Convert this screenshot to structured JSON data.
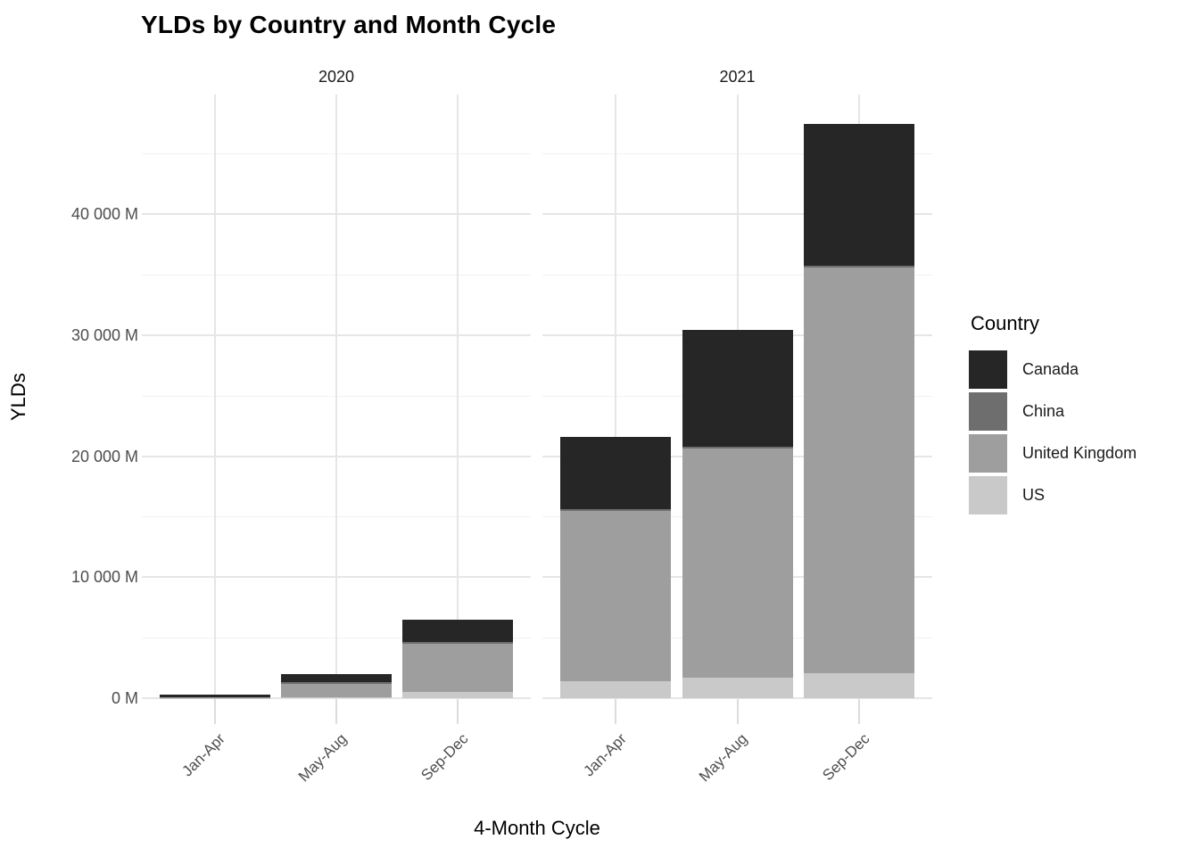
{
  "chart_data": {
    "type": "bar",
    "stacked": true,
    "title": "YLDs by Country and Month Cycle",
    "xlabel": "4-Month Cycle",
    "ylabel": "YLDs",
    "unit": "M",
    "ylim": [
      0,
      49900
    ],
    "grid": "major-and-minor",
    "categories": [
      "Jan-Apr",
      "May-Aug",
      "Sep-Dec"
    ],
    "facets": [
      {
        "label": "2020",
        "categories": [
          "Jan-Apr",
          "May-Aug",
          "Sep-Dec"
        ],
        "series": [
          {
            "name": "Canada",
            "values": [
              150,
              720,
              1850
            ]
          },
          {
            "name": "China",
            "values": [
              10,
              140,
              150
            ]
          },
          {
            "name": "United Kingdom",
            "values": [
              70,
              1080,
              3980
            ]
          },
          {
            "name": "US",
            "values": [
              30,
              70,
              515
            ]
          }
        ]
      },
      {
        "label": "2021",
        "categories": [
          "Jan-Apr",
          "May-Aug",
          "Sep-Dec"
        ],
        "series": [
          {
            "name": "Canada",
            "values": [
              5990,
              9630,
              11740
            ]
          },
          {
            "name": "China",
            "values": [
              150,
              150,
              150
            ]
          },
          {
            "name": "United Kingdom",
            "values": [
              14075,
              18930,
              33510
            ]
          },
          {
            "name": "US",
            "values": [
              1400,
              1700,
              2060
            ]
          }
        ]
      }
    ],
    "yticks": [
      {
        "value": 0,
        "label": "0 M"
      },
      {
        "value": 10000,
        "label": "10 000 M"
      },
      {
        "value": 20000,
        "label": "20 000 M"
      },
      {
        "value": 30000,
        "label": "30 000 M"
      },
      {
        "value": 40000,
        "label": "40 000 M"
      }
    ],
    "minor_yticks": [
      5000,
      15000,
      25000,
      35000,
      45000
    ],
    "stack_order_bottom_to_top": [
      "US",
      "United Kingdom",
      "China",
      "Canada"
    ],
    "legend": {
      "title": "Country",
      "position": "right",
      "entries": [
        "Canada",
        "China",
        "United Kingdom",
        "US"
      ]
    },
    "colors": {
      "Canada": "#262626",
      "China": "#6e6e6e",
      "United Kingdom": "#9e9e9e",
      "US": "#c9c9c9",
      "grid_major": "#e6e6e6",
      "grid_minor": "#f2f2f2",
      "tick_mark": "#dcdcdc"
    }
  }
}
